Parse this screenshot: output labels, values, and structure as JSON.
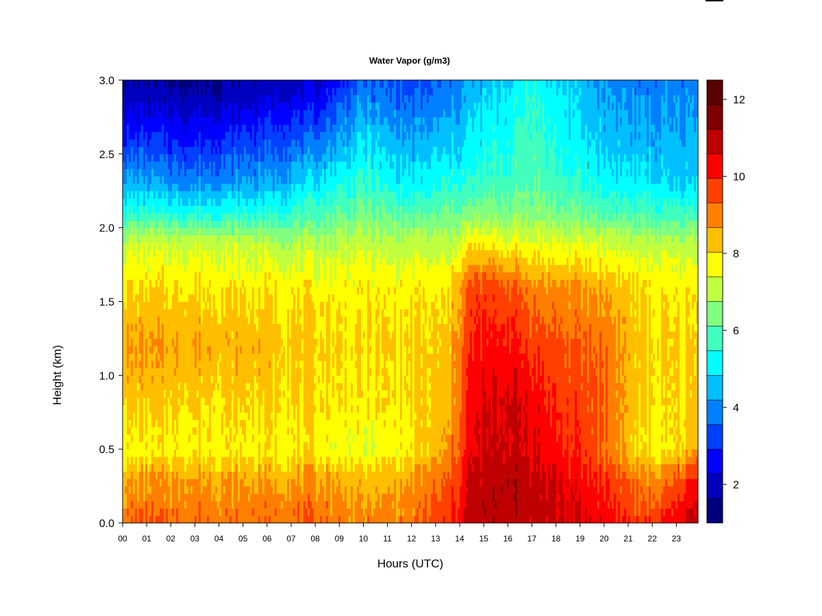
{
  "chart_data": {
    "type": "heatmap",
    "title": "Water Vapor (g/m3)",
    "xlabel": "Hours (UTC)",
    "ylabel": "Height (km)",
    "x_ticks": [
      "00",
      "01",
      "02",
      "03",
      "04",
      "05",
      "06",
      "07",
      "08",
      "09",
      "10",
      "11",
      "12",
      "13",
      "14",
      "15",
      "16",
      "17",
      "18",
      "19",
      "20",
      "21",
      "22",
      "23"
    ],
    "y_ticks": [
      "0.0",
      "0.5",
      "1.0",
      "1.5",
      "2.0",
      "2.5",
      "3.0"
    ],
    "xlim": [
      0,
      23.9
    ],
    "ylim": [
      0.0,
      3.0
    ],
    "colorbar": {
      "min": 1,
      "max": 12.5,
      "ticks": [
        "2",
        "4",
        "6",
        "8",
        "10",
        "12"
      ],
      "colors": [
        "#00007F",
        "#0000BF",
        "#0000FF",
        "#0040FF",
        "#0080FF",
        "#00BFFF",
        "#00FFFF",
        "#40FFBF",
        "#80FF80",
        "#BFFF40",
        "#FFFF00",
        "#FFBF00",
        "#FF8000",
        "#FF4000",
        "#FF0000",
        "#BF0000",
        "#7F0000",
        "#5A0000"
      ]
    },
    "profiles": [
      {
        "hour": 0,
        "values": [
          [
            0.0,
            9.3
          ],
          [
            0.3,
            8.6
          ],
          [
            0.5,
            7.7
          ],
          [
            0.8,
            8.2
          ],
          [
            1.2,
            8.7
          ],
          [
            1.6,
            8.0
          ],
          [
            1.9,
            7.2
          ],
          [
            2.1,
            5.6
          ],
          [
            2.3,
            4.4
          ],
          [
            2.6,
            3.0
          ],
          [
            2.9,
            1.9
          ],
          [
            3.0,
            1.6
          ]
        ]
      },
      {
        "hour": 3,
        "values": [
          [
            0.0,
            9.2
          ],
          [
            0.3,
            8.7
          ],
          [
            0.5,
            7.8
          ],
          [
            0.8,
            8.1
          ],
          [
            1.2,
            8.6
          ],
          [
            1.6,
            8.0
          ],
          [
            1.9,
            7.2
          ],
          [
            2.1,
            5.4
          ],
          [
            2.3,
            4.0
          ],
          [
            2.6,
            2.8
          ],
          [
            2.9,
            1.8
          ],
          [
            3.0,
            1.5
          ]
        ]
      },
      {
        "hour": 6,
        "values": [
          [
            0.0,
            9.2
          ],
          [
            0.3,
            8.6
          ],
          [
            0.5,
            7.8
          ],
          [
            0.8,
            8.1
          ],
          [
            1.2,
            8.4
          ],
          [
            1.6,
            7.9
          ],
          [
            1.9,
            7.0
          ],
          [
            2.1,
            5.5
          ],
          [
            2.3,
            4.3
          ],
          [
            2.6,
            3.2
          ],
          [
            2.9,
            2.1
          ],
          [
            3.0,
            1.8
          ]
        ]
      },
      {
        "hour": 8,
        "values": [
          [
            0.0,
            9.3
          ],
          [
            0.3,
            8.8
          ],
          [
            0.5,
            7.8
          ],
          [
            0.8,
            8.0
          ],
          [
            1.2,
            8.2
          ],
          [
            1.6,
            7.8
          ],
          [
            1.9,
            6.9
          ],
          [
            2.1,
            5.8
          ],
          [
            2.3,
            4.9
          ],
          [
            2.6,
            3.6
          ],
          [
            2.9,
            2.4
          ],
          [
            3.0,
            2.1
          ]
        ]
      },
      {
        "hour": 10,
        "values": [
          [
            0.0,
            8.9
          ],
          [
            0.3,
            8.3
          ],
          [
            0.5,
            7.4
          ],
          [
            0.8,
            7.8
          ],
          [
            1.2,
            8.0
          ],
          [
            1.6,
            7.8
          ],
          [
            1.9,
            7.1
          ],
          [
            2.1,
            6.3
          ],
          [
            2.3,
            5.6
          ],
          [
            2.6,
            4.8
          ],
          [
            2.9,
            3.9
          ],
          [
            3.0,
            3.5
          ]
        ]
      },
      {
        "hour": 12,
        "values": [
          [
            0.0,
            9.1
          ],
          [
            0.3,
            8.6
          ],
          [
            0.5,
            7.8
          ],
          [
            0.8,
            8.0
          ],
          [
            1.2,
            8.1
          ],
          [
            1.6,
            7.8
          ],
          [
            1.9,
            7.0
          ],
          [
            2.1,
            5.9
          ],
          [
            2.3,
            5.0
          ],
          [
            2.6,
            4.2
          ],
          [
            2.9,
            3.4
          ],
          [
            3.0,
            3.1
          ]
        ]
      },
      {
        "hour": 13.5,
        "values": [
          [
            0.0,
            9.8
          ],
          [
            0.3,
            9.3
          ],
          [
            0.5,
            8.7
          ],
          [
            0.8,
            8.3
          ],
          [
            1.2,
            8.1
          ],
          [
            1.6,
            7.8
          ],
          [
            1.9,
            7.0
          ],
          [
            2.1,
            6.2
          ],
          [
            2.3,
            5.4
          ],
          [
            2.6,
            4.5
          ],
          [
            2.9,
            3.8
          ],
          [
            3.0,
            3.5
          ]
        ]
      },
      {
        "hour": 14.5,
        "values": [
          [
            0.0,
            10.9
          ],
          [
            0.3,
            10.8
          ],
          [
            0.5,
            10.4
          ],
          [
            0.8,
            10.3
          ],
          [
            1.2,
            10.0
          ],
          [
            1.6,
            9.6
          ],
          [
            1.9,
            7.8
          ],
          [
            2.1,
            6.4
          ],
          [
            2.3,
            5.5
          ],
          [
            2.6,
            5.0
          ],
          [
            2.9,
            4.5
          ],
          [
            3.0,
            4.2
          ]
        ]
      },
      {
        "hour": 16,
        "values": [
          [
            0.0,
            11.0
          ],
          [
            0.3,
            11.1
          ],
          [
            0.5,
            10.8
          ],
          [
            0.8,
            10.8
          ],
          [
            1.2,
            10.2
          ],
          [
            1.6,
            9.5
          ],
          [
            1.9,
            7.6
          ],
          [
            2.1,
            6.4
          ],
          [
            2.3,
            5.8
          ],
          [
            2.6,
            5.4
          ],
          [
            2.9,
            5.0
          ],
          [
            3.0,
            4.7
          ]
        ]
      },
      {
        "hour": 17,
        "values": [
          [
            0.0,
            10.9
          ],
          [
            0.3,
            10.9
          ],
          [
            0.5,
            10.6
          ],
          [
            0.8,
            10.4
          ],
          [
            1.2,
            9.8
          ],
          [
            1.6,
            9.0
          ],
          [
            1.9,
            7.5
          ],
          [
            2.1,
            6.6
          ],
          [
            2.3,
            6.0
          ],
          [
            2.6,
            5.8
          ],
          [
            2.9,
            5.6
          ],
          [
            3.0,
            5.4
          ]
        ]
      },
      {
        "hour": 18,
        "values": [
          [
            0.0,
            10.8
          ],
          [
            0.3,
            10.6
          ],
          [
            0.5,
            10.1
          ],
          [
            0.8,
            9.9
          ],
          [
            1.2,
            9.5
          ],
          [
            1.6,
            8.8
          ],
          [
            1.9,
            7.4
          ],
          [
            2.1,
            6.3
          ],
          [
            2.3,
            5.8
          ],
          [
            2.6,
            5.3
          ],
          [
            2.9,
            5.0
          ],
          [
            3.0,
            4.8
          ]
        ]
      },
      {
        "hour": 20,
        "values": [
          [
            0.0,
            10.4
          ],
          [
            0.3,
            9.9
          ],
          [
            0.5,
            9.3
          ],
          [
            0.8,
            9.4
          ],
          [
            1.2,
            9.2
          ],
          [
            1.6,
            8.6
          ],
          [
            1.9,
            7.3
          ],
          [
            2.1,
            6.0
          ],
          [
            2.3,
            5.2
          ],
          [
            2.6,
            4.6
          ],
          [
            2.9,
            4.3
          ],
          [
            3.0,
            4.1
          ]
        ]
      },
      {
        "hour": 21.5,
        "values": [
          [
            0.0,
            9.7
          ],
          [
            0.3,
            8.9
          ],
          [
            0.5,
            7.8
          ],
          [
            0.8,
            8.1
          ],
          [
            1.2,
            8.2
          ],
          [
            1.6,
            7.9
          ],
          [
            1.9,
            7.0
          ],
          [
            2.1,
            5.8
          ],
          [
            2.3,
            5.0
          ],
          [
            2.6,
            4.3
          ],
          [
            2.9,
            3.9
          ],
          [
            3.0,
            3.7
          ]
        ]
      },
      {
        "hour": 22.5,
        "values": [
          [
            0.0,
            10.0
          ],
          [
            0.3,
            9.0
          ],
          [
            0.5,
            7.7
          ],
          [
            0.8,
            7.9
          ],
          [
            1.2,
            8.0
          ],
          [
            1.6,
            7.8
          ],
          [
            1.9,
            7.0
          ],
          [
            2.1,
            5.7
          ],
          [
            2.3,
            4.8
          ],
          [
            2.6,
            4.3
          ],
          [
            2.9,
            4.0
          ],
          [
            3.0,
            3.8
          ]
        ]
      },
      {
        "hour": 23.9,
        "values": [
          [
            0.0,
            11.1
          ],
          [
            0.3,
            10.1
          ],
          [
            0.5,
            8.6
          ],
          [
            0.8,
            8.2
          ],
          [
            1.2,
            8.1
          ],
          [
            1.6,
            7.9
          ],
          [
            1.9,
            7.0
          ],
          [
            2.1,
            5.7
          ],
          [
            2.3,
            4.7
          ],
          [
            2.6,
            4.3
          ],
          [
            2.9,
            4.0
          ],
          [
            3.0,
            3.8
          ]
        ]
      }
    ]
  }
}
